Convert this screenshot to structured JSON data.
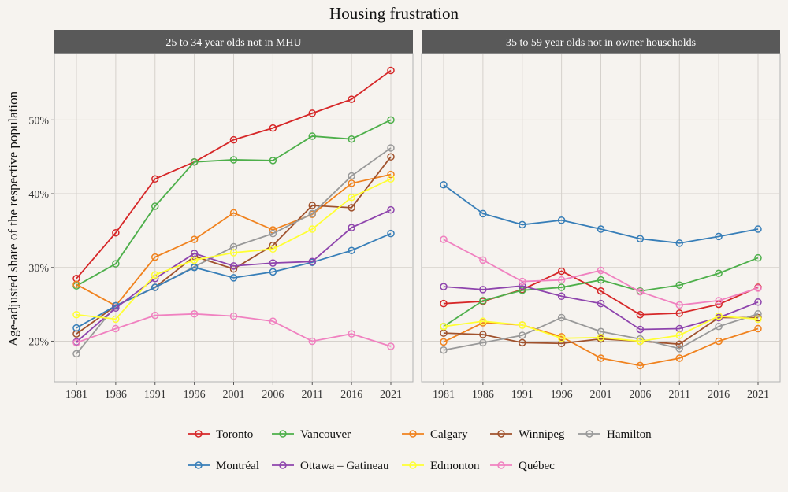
{
  "chart_data": {
    "type": "line",
    "title": "Housing frustration",
    "ylabel": "Age-adjusted share of the respective population",
    "x": [
      "1981",
      "1986",
      "1991",
      "1996",
      "2001",
      "2006",
      "2011",
      "2016",
      "2021"
    ],
    "yticks": [
      "20%",
      "30%",
      "40%",
      "50%"
    ],
    "ylim": [
      0.145,
      0.59
    ],
    "grid": true,
    "legend_position": "bottom",
    "panels": [
      {
        "title": "25 to 34 year olds not in MHU",
        "series": [
          {
            "name": "Toronto",
            "values": [
              0.285,
              0.347,
              0.42,
              0.443,
              0.473,
              0.489,
              0.509,
              0.528,
              0.567
            ]
          },
          {
            "name": "Vancouver",
            "values": [
              0.275,
              0.305,
              0.383,
              0.443,
              0.446,
              0.445,
              0.478,
              0.474,
              0.5
            ]
          },
          {
            "name": "Calgary",
            "values": [
              0.277,
              0.248,
              0.314,
              0.338,
              0.374,
              0.351,
              0.372,
              0.414,
              0.426
            ]
          },
          {
            "name": "Winnipeg",
            "values": [
              0.21,
              0.248,
              0.273,
              0.315,
              0.298,
              0.33,
              0.384,
              0.381,
              0.45
            ]
          },
          {
            "name": "Hamilton",
            "values": [
              0.183,
              0.248,
              0.273,
              0.301,
              0.328,
              0.346,
              0.373,
              0.424,
              0.462
            ]
          },
          {
            "name": "Montréal",
            "values": [
              0.218,
              0.248,
              0.273,
              0.3,
              0.286,
              0.294,
              0.307,
              0.323,
              0.346
            ]
          },
          {
            "name": "Ottawa – Gatineau",
            "values": [
              0.199,
              0.245,
              0.285,
              0.319,
              0.302,
              0.306,
              0.308,
              0.354,
              0.378
            ]
          },
          {
            "name": "Edmonton",
            "values": [
              0.236,
              0.23,
              0.29,
              0.31,
              0.32,
              0.325,
              0.352,
              0.395,
              0.42
            ]
          },
          {
            "name": "Québec",
            "values": [
              0.198,
              0.217,
              0.235,
              0.237,
              0.234,
              0.227,
              0.2,
              0.21,
              0.193
            ]
          }
        ]
      },
      {
        "title": "35 to 59 year olds not in owner households",
        "series": [
          {
            "name": "Toronto",
            "values": [
              0.251,
              0.254,
              0.27,
              0.295,
              0.268,
              0.236,
              0.238,
              0.25,
              0.273
            ]
          },
          {
            "name": "Vancouver",
            "values": [
              0.22,
              0.255,
              0.269,
              0.273,
              0.283,
              0.268,
              0.276,
              0.292,
              0.313
            ]
          },
          {
            "name": "Calgary",
            "values": [
              0.199,
              0.225,
              0.222,
              0.206,
              0.177,
              0.167,
              0.177,
              0.2,
              0.217
            ]
          },
          {
            "name": "Winnipeg",
            "values": [
              0.211,
              0.209,
              0.198,
              0.197,
              0.203,
              0.2,
              0.196,
              0.232,
              0.232
            ]
          },
          {
            "name": "Hamilton",
            "values": [
              0.188,
              0.198,
              0.208,
              0.232,
              0.213,
              0.203,
              0.19,
              0.22,
              0.237
            ]
          },
          {
            "name": "Montréal",
            "values": [
              0.412,
              0.373,
              0.358,
              0.364,
              0.352,
              0.339,
              0.333,
              0.342,
              0.352
            ]
          },
          {
            "name": "Ottawa – Gatineau",
            "values": [
              0.274,
              0.27,
              0.275,
              0.261,
              0.251,
              0.216,
              0.217,
              0.232,
              0.253
            ]
          },
          {
            "name": "Edmonton",
            "values": [
              0.22,
              0.227,
              0.222,
              0.204,
              0.205,
              0.2,
              0.208,
              0.234,
              0.23
            ]
          },
          {
            "name": "Québec",
            "values": [
              0.338,
              0.31,
              0.281,
              0.283,
              0.296,
              0.267,
              0.249,
              0.255,
              0.272
            ]
          }
        ]
      }
    ],
    "colors": {
      "Toronto": "#d62728",
      "Vancouver": "#4daf4a",
      "Calgary": "#f0821e",
      "Winnipeg": "#a0522d",
      "Hamilton": "#999999",
      "Montréal": "#377eb8",
      "Ottawa – Gatineau": "#8e44ad",
      "Edmonton": "#ffff33",
      "Québec": "#f081c0"
    }
  }
}
